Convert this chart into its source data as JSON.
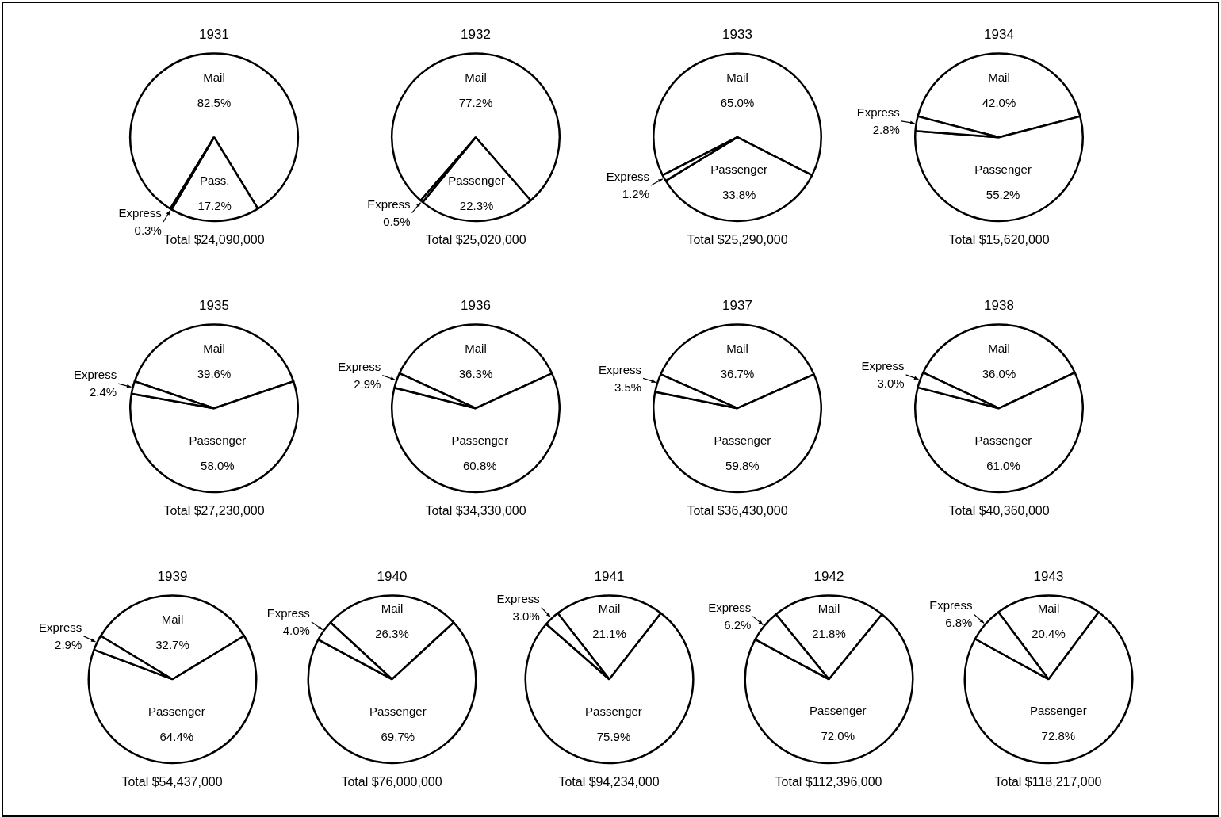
{
  "chart_data": [
    {
      "type": "pie",
      "title": "1931",
      "categories": [
        "Mail",
        "Pass.",
        "Express"
      ],
      "values": [
        82.5,
        17.2,
        0.3
      ],
      "value_labels": [
        "82.5%",
        "17.2%",
        "0.3%"
      ],
      "colors": [
        "#ffffff",
        "#ffffff",
        "#ffffff"
      ],
      "annotations": [
        "Total $24,090,000"
      ]
    },
    {
      "type": "pie",
      "title": "1932",
      "categories": [
        "Mail",
        "Passenger",
        "Express"
      ],
      "values": [
        77.2,
        22.3,
        0.5
      ],
      "value_labels": [
        "77.2%",
        "22.3%",
        "0.5%"
      ],
      "colors": [
        "#ffffff",
        "#ffffff",
        "#ffffff"
      ],
      "annotations": [
        "Total $25,020,000"
      ]
    },
    {
      "type": "pie",
      "title": "1933",
      "categories": [
        "Mail",
        "Passenger",
        "Express"
      ],
      "values": [
        65.0,
        33.8,
        1.2
      ],
      "value_labels": [
        "65.0%",
        "33.8%",
        "1.2%"
      ],
      "colors": [
        "#ffffff",
        "#ffffff",
        "#ffffff"
      ],
      "annotations": [
        "Total $25,290,000"
      ]
    },
    {
      "type": "pie",
      "title": "1934",
      "categories": [
        "Mail",
        "Passenger",
        "Express"
      ],
      "values": [
        42.0,
        55.2,
        2.8
      ],
      "value_labels": [
        "42.0%",
        "55.2%",
        "2.8%"
      ],
      "colors": [
        "#ffffff",
        "#ffffff",
        "#ffffff"
      ],
      "annotations": [
        "Total $15,620,000"
      ]
    },
    {
      "type": "pie",
      "title": "1935",
      "categories": [
        "Mail",
        "Passenger",
        "Express"
      ],
      "values": [
        39.6,
        58.0,
        2.4
      ],
      "value_labels": [
        "39.6%",
        "58.0%",
        "2.4%"
      ],
      "colors": [
        "#ffffff",
        "#ffffff",
        "#ffffff"
      ],
      "annotations": [
        "Total $27,230,000"
      ]
    },
    {
      "type": "pie",
      "title": "1936",
      "categories": [
        "Mail",
        "Passenger",
        "Express"
      ],
      "values": [
        36.3,
        60.8,
        2.9
      ],
      "value_labels": [
        "36.3%",
        "60.8%",
        "2.9%"
      ],
      "colors": [
        "#ffffff",
        "#ffffff",
        "#ffffff"
      ],
      "annotations": [
        "Total $34,330,000"
      ]
    },
    {
      "type": "pie",
      "title": "1937",
      "categories": [
        "Mail",
        "Passenger",
        "Express"
      ],
      "values": [
        36.7,
        59.8,
        3.5
      ],
      "value_labels": [
        "36.7%",
        "59.8%",
        "3.5%"
      ],
      "colors": [
        "#ffffff",
        "#ffffff",
        "#ffffff"
      ],
      "annotations": [
        "Total $36,430,000"
      ]
    },
    {
      "type": "pie",
      "title": "1938",
      "categories": [
        "Mail",
        "Passenger",
        "Express"
      ],
      "values": [
        36.0,
        61.0,
        3.0
      ],
      "value_labels": [
        "36.0%",
        "61.0%",
        "3.0%"
      ],
      "colors": [
        "#ffffff",
        "#ffffff",
        "#ffffff"
      ],
      "annotations": [
        "Total $40,360,000"
      ]
    },
    {
      "type": "pie",
      "title": "1939",
      "categories": [
        "Mail",
        "Passenger",
        "Express"
      ],
      "values": [
        32.7,
        64.4,
        2.9
      ],
      "value_labels": [
        "32.7%",
        "64.4%",
        "2.9%"
      ],
      "colors": [
        "#ffffff",
        "#ffffff",
        "#ffffff"
      ],
      "annotations": [
        "Total $54,437,000"
      ]
    },
    {
      "type": "pie",
      "title": "1940",
      "categories": [
        "Mail",
        "Passenger",
        "Express"
      ],
      "values": [
        26.3,
        69.7,
        4.0
      ],
      "value_labels": [
        "26.3%",
        "69.7%",
        "4.0%"
      ],
      "colors": [
        "#ffffff",
        "#ffffff",
        "#ffffff"
      ],
      "annotations": [
        "Total $76,000,000"
      ]
    },
    {
      "type": "pie",
      "title": "1941",
      "categories": [
        "Mail",
        "Passenger",
        "Express"
      ],
      "values": [
        21.1,
        75.9,
        3.0
      ],
      "value_labels": [
        "21.1%",
        "75.9%",
        "3.0%"
      ],
      "colors": [
        "#ffffff",
        "#ffffff",
        "#ffffff"
      ],
      "annotations": [
        "Total $94,234,000"
      ]
    },
    {
      "type": "pie",
      "title": "1942",
      "categories": [
        "Mail",
        "Passenger",
        "Express"
      ],
      "values": [
        21.8,
        72.0,
        6.2
      ],
      "value_labels": [
        "21.8%",
        "72.0%",
        "6.2%"
      ],
      "colors": [
        "#ffffff",
        "#ffffff",
        "#ffffff"
      ],
      "annotations": [
        "Total $112,396,000"
      ]
    },
    {
      "type": "pie",
      "title": "1943",
      "categories": [
        "Mail",
        "Passenger",
        "Express"
      ],
      "values": [
        20.4,
        72.8,
        6.8
      ],
      "value_labels": [
        "20.4%",
        "72.8%",
        "6.8%"
      ],
      "colors": [
        "#ffffff",
        "#ffffff",
        "#ffffff"
      ],
      "annotations": [
        "Total $118,217,000"
      ]
    }
  ]
}
